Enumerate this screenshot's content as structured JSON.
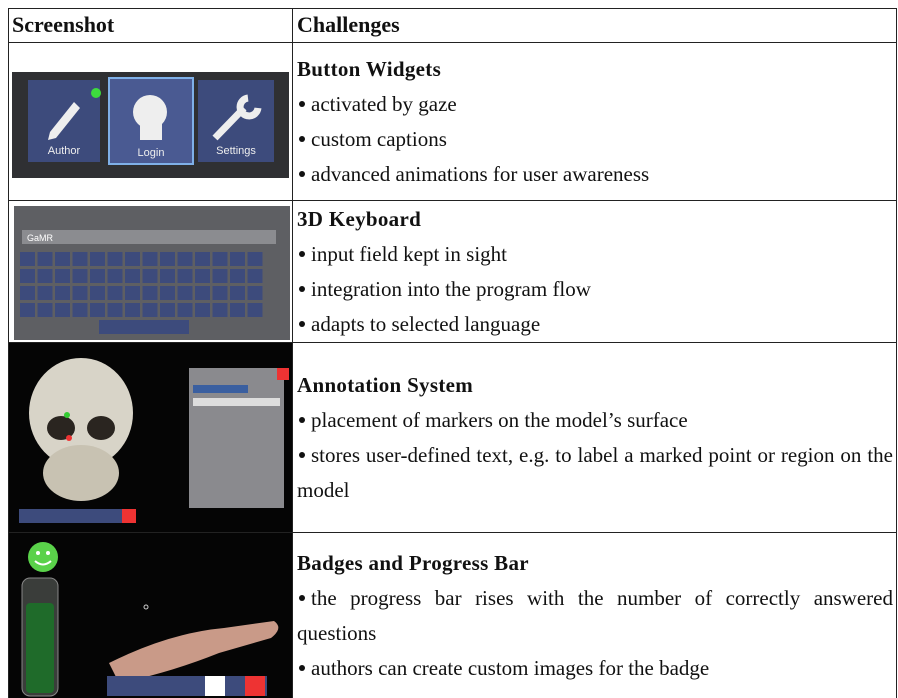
{
  "table": {
    "header": [
      "Screenshot",
      "Challenges"
    ],
    "rows": [
      {
        "title": "Button Widgets",
        "bullets": [
          "activated by gaze",
          "custom captions",
          "advanced animations for user awareness"
        ],
        "screenshot": {
          "labels": [
            "Author",
            "Login",
            "Settings"
          ]
        }
      },
      {
        "title": "3D Keyboard",
        "bullets": [
          "input field kept in sight",
          "integration into the program flow",
          "adapts to selected language"
        ],
        "screenshot": {
          "input": "GaMR"
        }
      },
      {
        "title": "Annotation System",
        "bullets": [
          "placement of markers on the model’s surface",
          "stores user-defined text, e.g. to label a marked point or region on the model"
        ]
      },
      {
        "title": "Badges and Progress Bar",
        "bullets": [
          "the progress bar rises with the number of correctly answered questions",
          "authors can create custom images for the badge"
        ]
      }
    ]
  }
}
